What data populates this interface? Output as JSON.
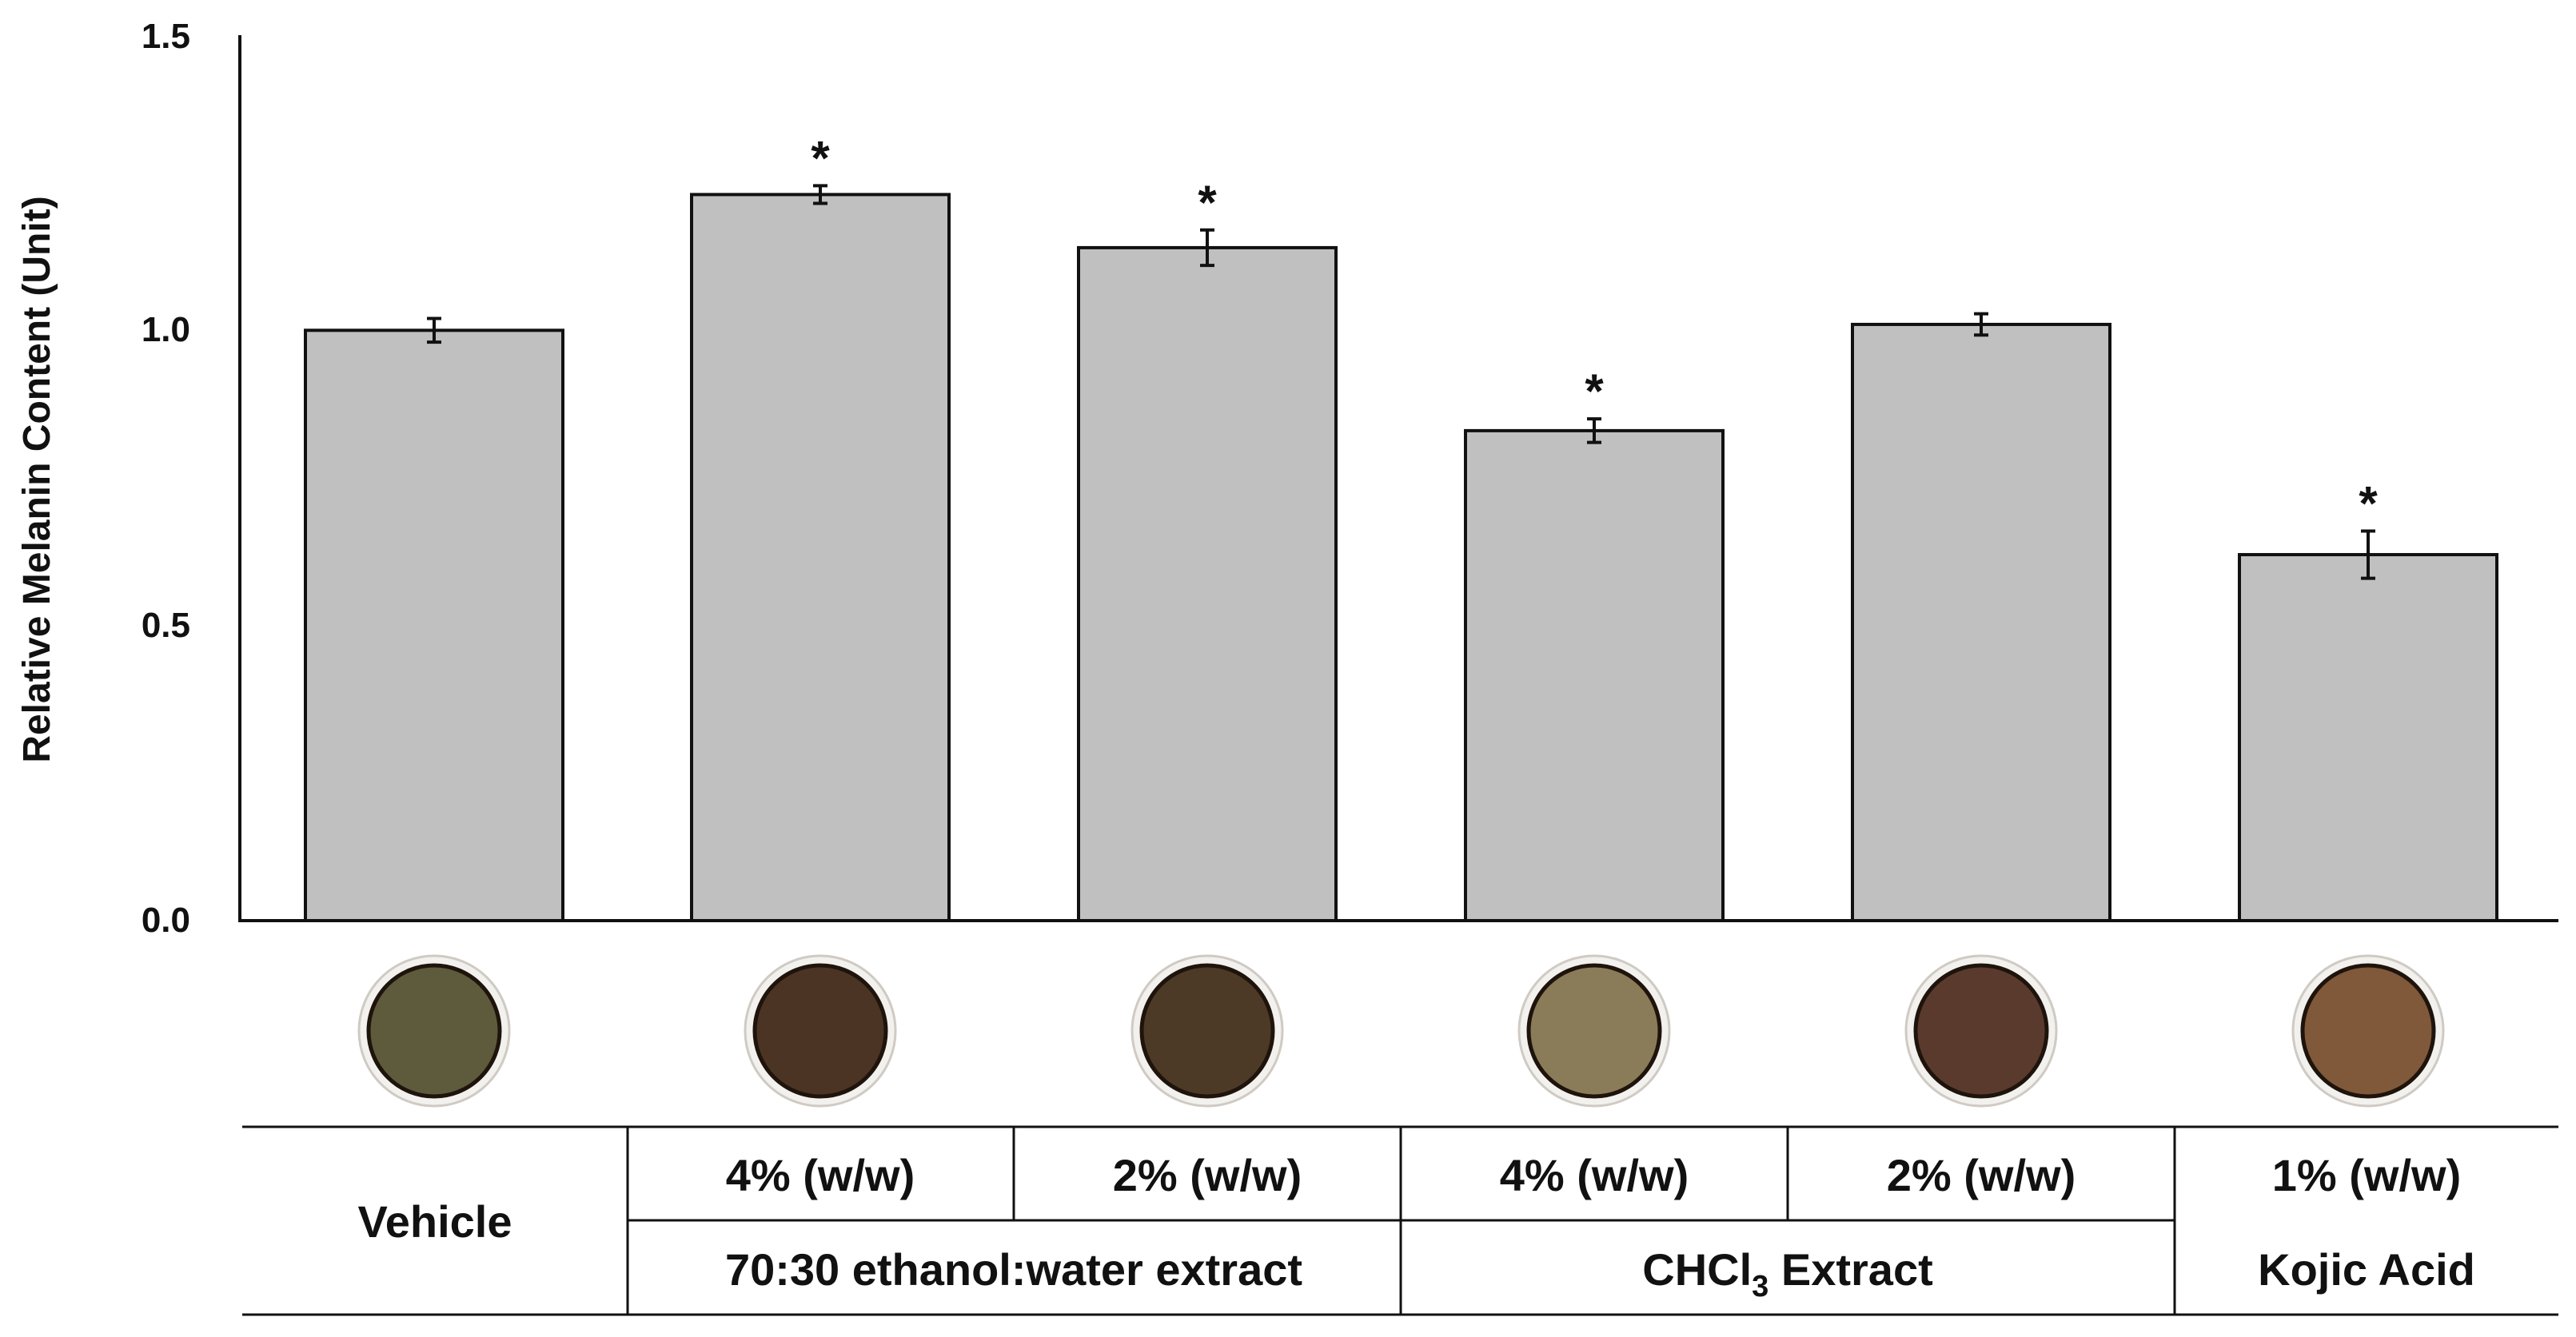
{
  "chart_data": {
    "type": "bar",
    "title": "",
    "xlabel": "",
    "ylabel": "Relative Melanin Content (Unit)",
    "ylim": [
      0,
      1.5
    ],
    "yticks": [
      "0.0",
      "0.5",
      "1.0",
      "1.5"
    ],
    "categories": [
      "Vehicle",
      "4% (w/w)",
      "2% (w/w)",
      "4% (w/w)",
      "2% (w/w)",
      "1% (w/w)"
    ],
    "values": [
      1.0,
      1.23,
      1.14,
      0.83,
      1.01,
      0.62
    ],
    "errors": [
      0.02,
      0.015,
      0.03,
      0.02,
      0.018,
      0.04
    ],
    "significance": [
      "",
      "*",
      "*",
      "*",
      "",
      "*"
    ],
    "groups": [
      "Vehicle",
      "70:30 ethanol:water extract",
      "CHCl3 Extract",
      "Kojic Acid"
    ],
    "group_label_chcl3": {
      "prefix": "CHCl",
      "subscript": "3",
      "suffix": " Extract"
    },
    "bar_color": "#c0c0c0",
    "sample_colors": [
      "#5e5a3c",
      "#4b3423",
      "#4d3a26",
      "#8a7c58",
      "#5b3a2e",
      "#80583a"
    ]
  }
}
